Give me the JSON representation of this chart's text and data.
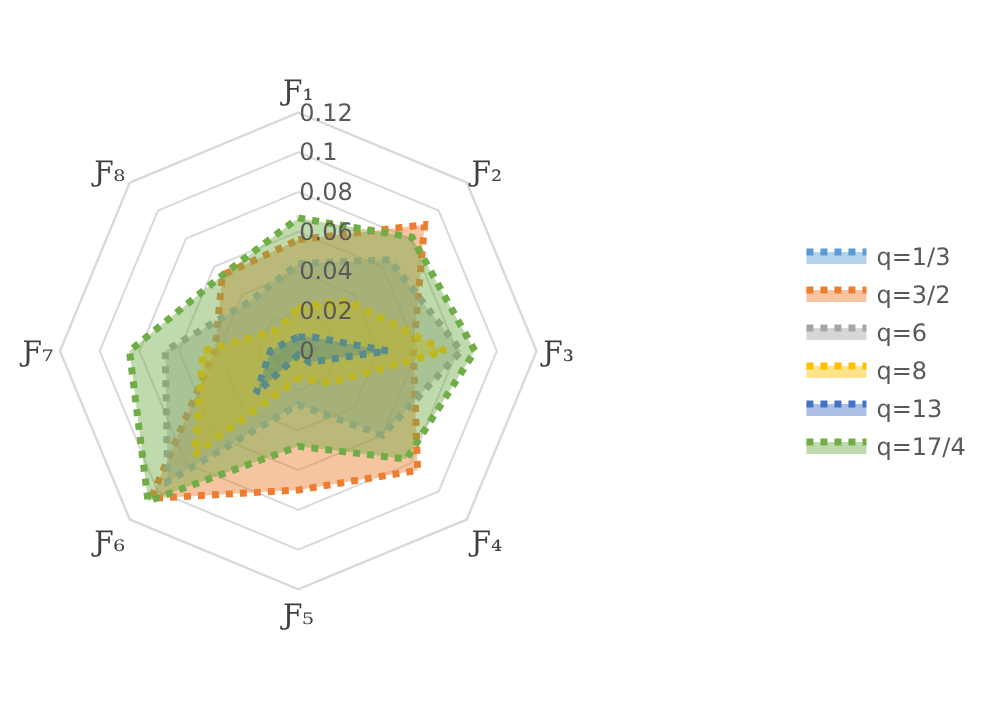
{
  "chart_data": {
    "type": "radar",
    "categories": [
      "Ƒ₁",
      "Ƒ₂",
      "Ƒ₃",
      "Ƒ₄",
      "Ƒ₅",
      "Ƒ₆",
      "Ƒ₇",
      "Ƒ₈"
    ],
    "series": [
      {
        "name": "q=1/3",
        "color": "#5b9bd5",
        "values": [
          0.004,
          0.005,
          0.01,
          0.004,
          0.002,
          0.02,
          0.01,
          0.004
        ]
      },
      {
        "name": "q=3/2",
        "color": "#ed7d31",
        "values": [
          0.056,
          0.09,
          0.058,
          0.085,
          0.07,
          0.105,
          0.042,
          0.054
        ]
      },
      {
        "name": "q=6",
        "color": "#a5a5a5",
        "values": [
          0.044,
          0.065,
          0.082,
          0.06,
          0.027,
          0.093,
          0.067,
          0.035
        ]
      },
      {
        "name": "q=8",
        "color": "#ffc000",
        "values": [
          0.022,
          0.036,
          0.074,
          0.023,
          0.014,
          0.074,
          0.048,
          0.015
        ]
      },
      {
        "name": "q=13",
        "color": "#4472c4",
        "values": [
          0.007,
          0.01,
          0.045,
          0.008,
          0.002,
          0.03,
          0.014,
          0.007
        ]
      },
      {
        "name": "q=17/4",
        "color": "#70ad47",
        "values": [
          0.067,
          0.081,
          0.089,
          0.077,
          0.048,
          0.107,
          0.085,
          0.054
        ]
      }
    ],
    "ylim": [
      0,
      0.12
    ],
    "yticks": [
      0,
      0.02,
      0.04,
      0.06,
      0.08,
      0.1,
      0.12
    ],
    "grid": "y",
    "legend": "right",
    "marker": "none",
    "line_style": "dotted"
  }
}
